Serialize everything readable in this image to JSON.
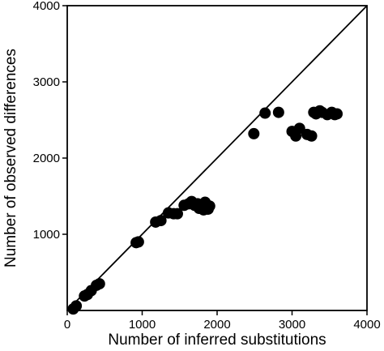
{
  "chart_data": {
    "type": "scatter",
    "title": "",
    "xlabel": "Number of inferred substitutions",
    "ylabel": "Number of observed differences",
    "xlim": [
      0,
      4000
    ],
    "ylim": [
      0,
      4000
    ],
    "x_ticks": [
      0,
      1000,
      2000,
      3000,
      4000
    ],
    "y_ticks": [
      1000,
      2000,
      3000,
      4000
    ],
    "x_tick_labels": [
      "0",
      "1000",
      "2000",
      "3000",
      "4000"
    ],
    "y_tick_labels": [
      "1000",
      "2000",
      "3000",
      "4000"
    ],
    "grid": false,
    "legend": "none",
    "reference_line": {
      "label": "y = x",
      "from": [
        0,
        0
      ],
      "to": [
        4000,
        4000
      ]
    },
    "marker_color": "#000000",
    "points": [
      {
        "x": 80,
        "y": 20
      },
      {
        "x": 120,
        "y": 60
      },
      {
        "x": 230,
        "y": 190
      },
      {
        "x": 270,
        "y": 210
      },
      {
        "x": 320,
        "y": 260
      },
      {
        "x": 390,
        "y": 330
      },
      {
        "x": 430,
        "y": 350
      },
      {
        "x": 920,
        "y": 890
      },
      {
        "x": 950,
        "y": 900
      },
      {
        "x": 1180,
        "y": 1160
      },
      {
        "x": 1250,
        "y": 1180
      },
      {
        "x": 1350,
        "y": 1280
      },
      {
        "x": 1420,
        "y": 1270
      },
      {
        "x": 1470,
        "y": 1270
      },
      {
        "x": 1560,
        "y": 1380
      },
      {
        "x": 1620,
        "y": 1400
      },
      {
        "x": 1660,
        "y": 1430
      },
      {
        "x": 1700,
        "y": 1380
      },
      {
        "x": 1740,
        "y": 1400
      },
      {
        "x": 1760,
        "y": 1340
      },
      {
        "x": 1800,
        "y": 1370
      },
      {
        "x": 1820,
        "y": 1320
      },
      {
        "x": 1840,
        "y": 1420
      },
      {
        "x": 1860,
        "y": 1350
      },
      {
        "x": 1880,
        "y": 1330
      },
      {
        "x": 1900,
        "y": 1370
      },
      {
        "x": 2490,
        "y": 2320
      },
      {
        "x": 2640,
        "y": 2590
      },
      {
        "x": 2820,
        "y": 2600
      },
      {
        "x": 3000,
        "y": 2350
      },
      {
        "x": 3050,
        "y": 2290
      },
      {
        "x": 3100,
        "y": 2390
      },
      {
        "x": 3200,
        "y": 2310
      },
      {
        "x": 3260,
        "y": 2290
      },
      {
        "x": 3290,
        "y": 2600
      },
      {
        "x": 3320,
        "y": 2580
      },
      {
        "x": 3370,
        "y": 2620
      },
      {
        "x": 3400,
        "y": 2600
      },
      {
        "x": 3470,
        "y": 2570
      },
      {
        "x": 3530,
        "y": 2600
      },
      {
        "x": 3570,
        "y": 2570
      },
      {
        "x": 3600,
        "y": 2580
      }
    ]
  }
}
